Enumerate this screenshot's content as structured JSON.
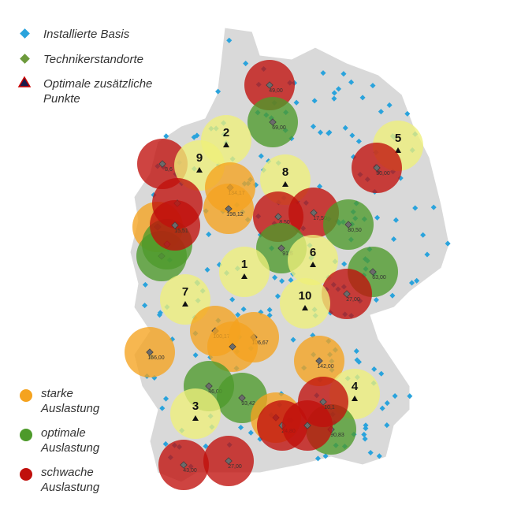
{
  "legend_top": [
    "Installierte Basis",
    "Technikerstandorte",
    "Optimale zusätzliche Punkte"
  ],
  "legend_bottom": [
    {
      "label": "starke Auslastung",
      "color": "#f5a31f"
    },
    {
      "label": "optimale Auslastung",
      "color": "#4d9a2a"
    },
    {
      "label": "schwache Auslastung",
      "color": "#c0100c"
    }
  ],
  "circles": [
    {
      "label": "49,00",
      "color": "#c0100c"
    },
    {
      "label": "69,00",
      "color": "#4d9a2a"
    },
    {
      "label": "2",
      "color": "#eef07a"
    },
    {
      "label": "8,6",
      "color": "#c0100c"
    },
    {
      "label": "9",
      "color": "#eef07a"
    },
    {
      "label": "134,17",
      "color": "#f5a31f"
    },
    {
      "label": "198,12",
      "color": "#f5a31f"
    },
    {
      "label": "8",
      "color": "#eef07a"
    },
    {
      "color": "#f5a31f"
    },
    {
      "color": "#4d9a2a"
    },
    {
      "color": "#4d9a2a"
    },
    {
      "color": "#c0100c"
    },
    {
      "label": "15,51",
      "color": "#c0100c"
    },
    {
      "label": "8,50",
      "color": "#c0100c"
    },
    {
      "label": "17,50",
      "color": "#c0100c"
    },
    {
      "label": "80,50",
      "color": "#4d9a2a"
    },
    {
      "label": "91,5",
      "color": "#4d9a2a"
    },
    {
      "label": "1",
      "color": "#eef07a"
    },
    {
      "label": "6",
      "color": "#eef07a"
    },
    {
      "label": "63,00",
      "color": "#4d9a2a"
    },
    {
      "label": "27,00",
      "color": "#c0100c"
    },
    {
      "label": "7",
      "color": "#eef07a"
    },
    {
      "label": "10",
      "color": "#eef07a"
    },
    {
      "label": "100,17",
      "color": "#f5a31f"
    },
    {
      "label": "106,67",
      "color": "#f5a31f"
    },
    {
      "color": "#f5a31f"
    },
    {
      "label": "166,00",
      "color": "#f5a31f"
    },
    {
      "label": "142,00",
      "color": "#f5a31f"
    },
    {
      "label": "86,00",
      "color": "#4d9a2a"
    },
    {
      "label": "93,42",
      "color": "#4d9a2a"
    },
    {
      "label": "3",
      "color": "#eef07a"
    },
    {
      "label": "4",
      "color": "#eef07a"
    },
    {
      "label": "90,83",
      "color": "#4d9a2a"
    },
    {
      "color": "#f5a31f"
    },
    {
      "label": "24,80",
      "color": "#c0100c"
    },
    {
      "color": "#c0100c"
    },
    {
      "label": "10,1",
      "color": "#c0100c"
    },
    {
      "label": "43,00",
      "color": "#c0100c"
    },
    {
      "label": "27,00",
      "color": "#c0100c"
    },
    {
      "label": "5",
      "color": "#eef07a"
    },
    {
      "label": "30,00",
      "color": "#c0100c"
    }
  ]
}
